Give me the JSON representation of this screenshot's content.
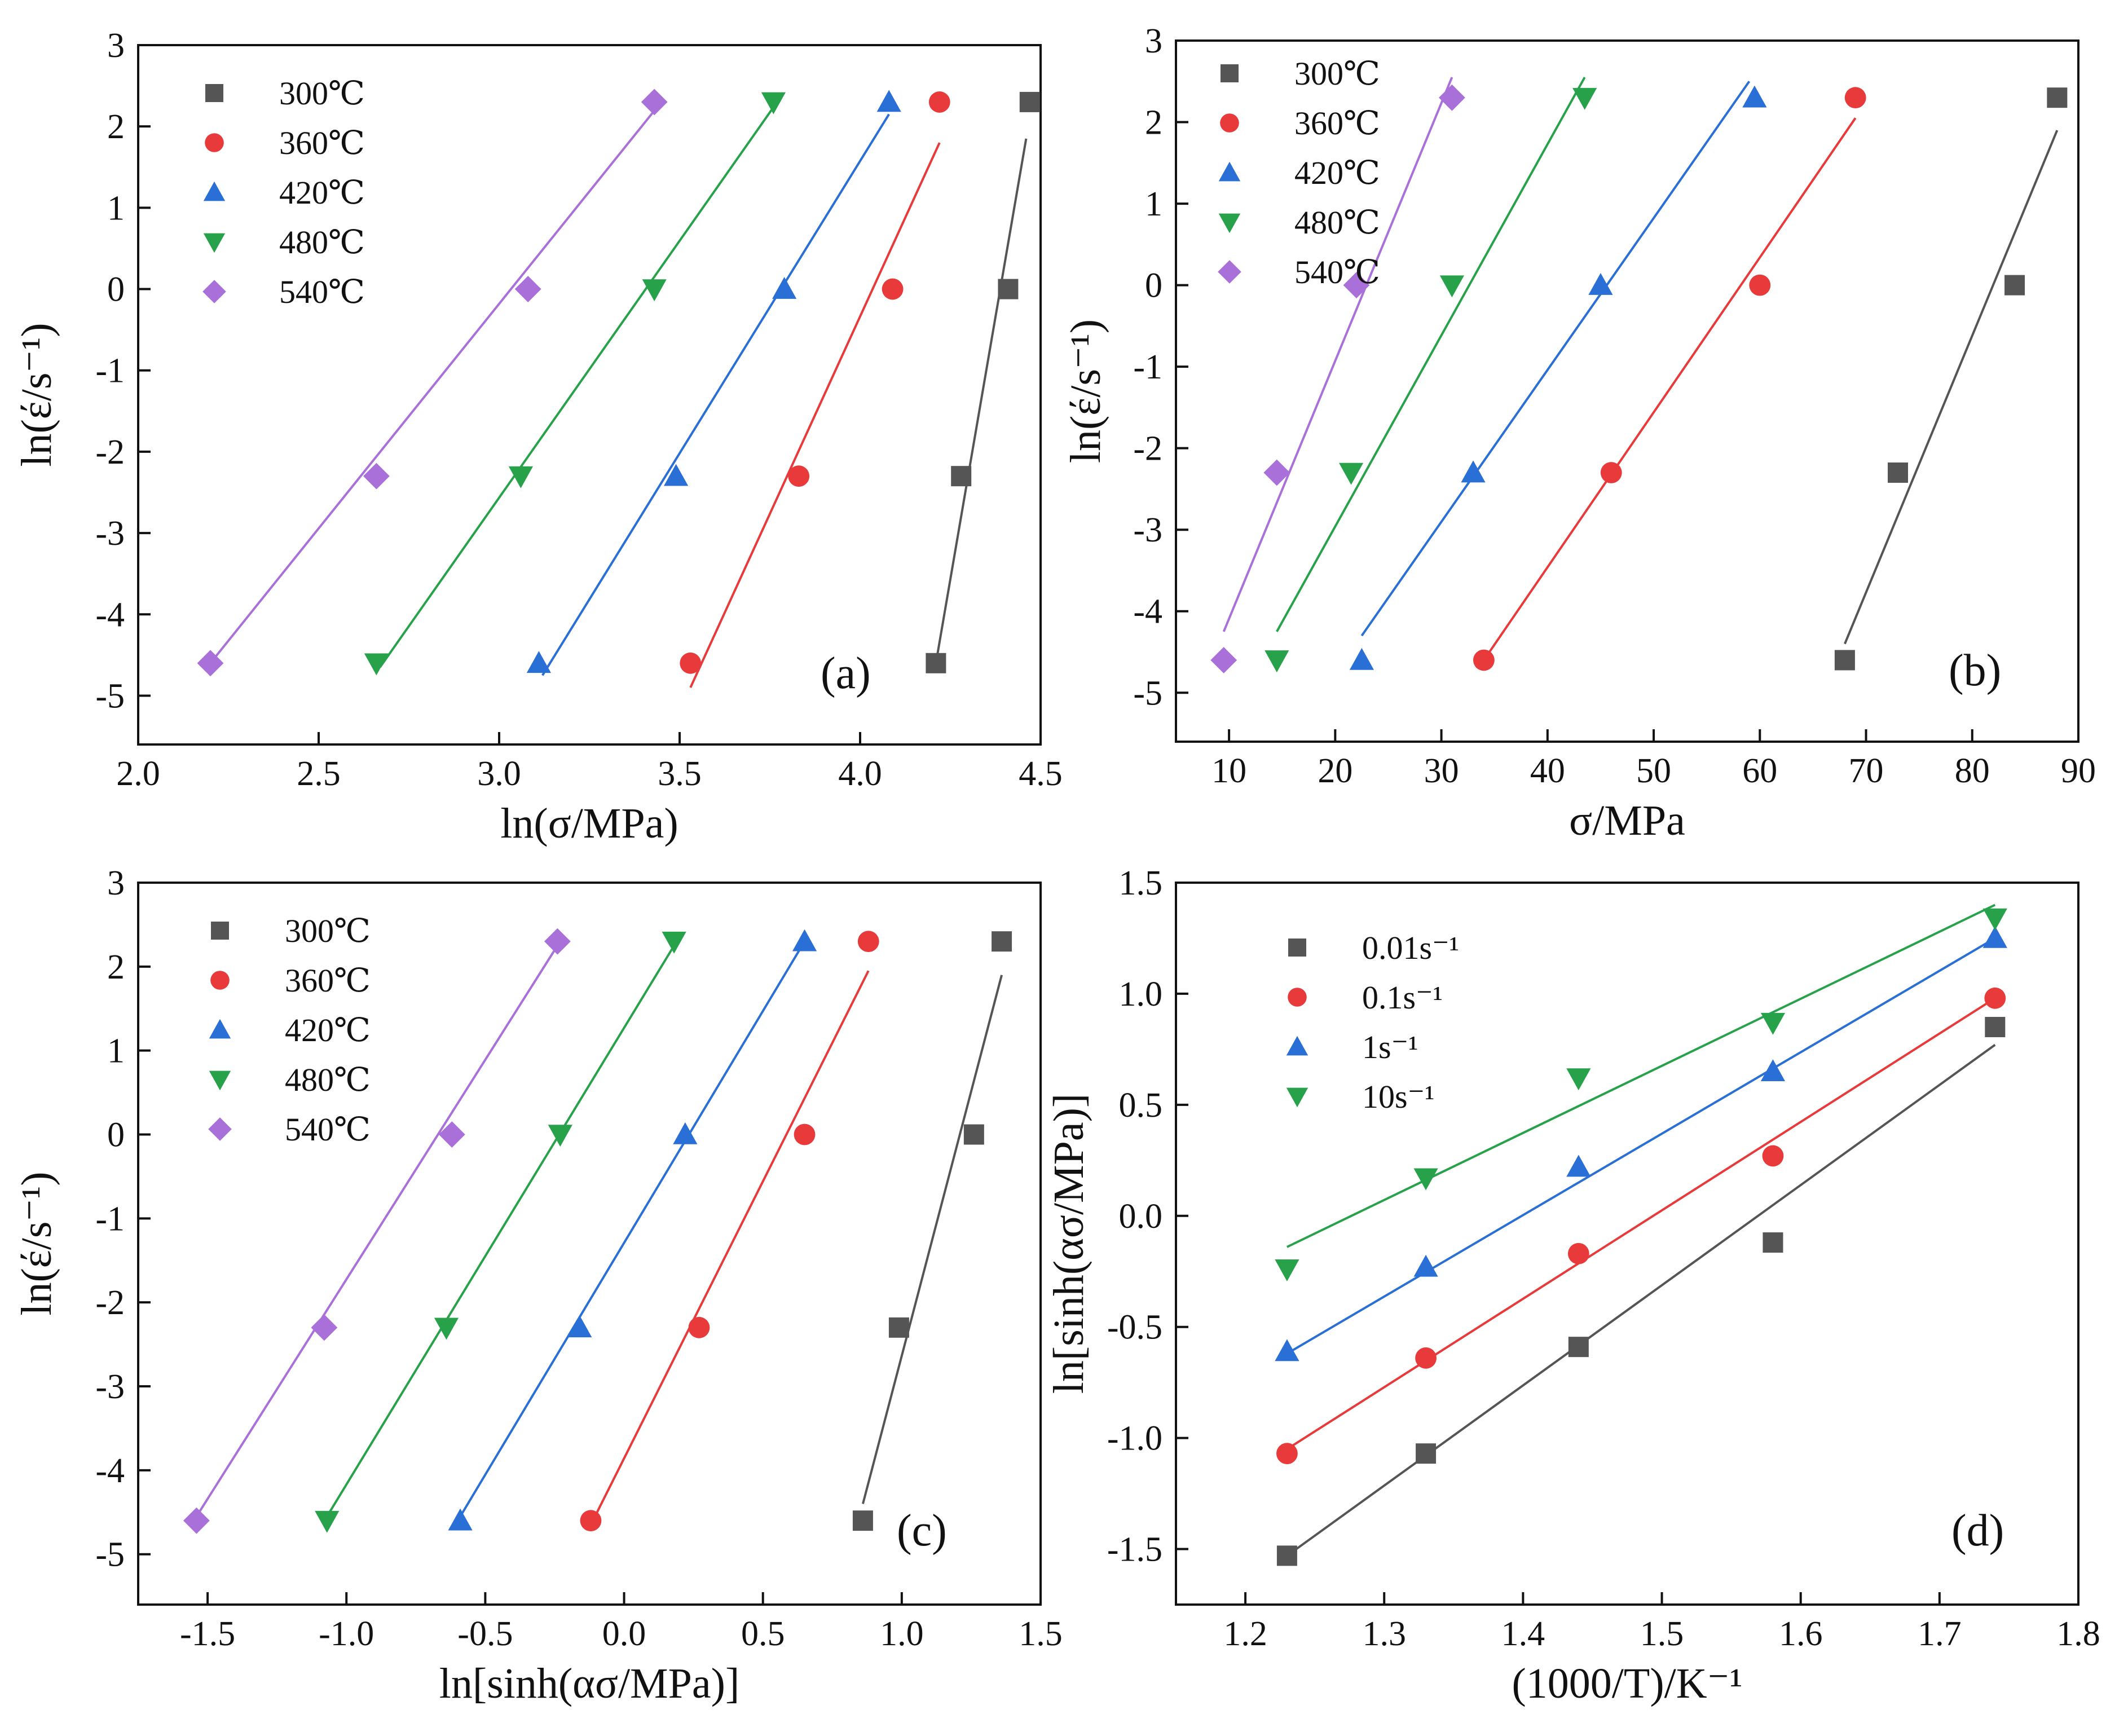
{
  "figure": {
    "colors": {
      "300": "#555555",
      "360": "#e83a3a",
      "420": "#2a6fd6",
      "480": "#27a24a",
      "540": "#a870d8",
      "0.01": "#555555",
      "0.1": "#e83a3a",
      "1": "#2a6fd6",
      "10": "#27a24a"
    }
  },
  "chart_data": [
    {
      "id": "a",
      "type": "scatter",
      "panel_label": "(a)",
      "xlabel": "ln(σ/MPa)",
      "ylabel": "ln(έ/s⁻¹)",
      "xlim": [
        2.0,
        4.5
      ],
      "ylim": [
        -5.6,
        3.0
      ],
      "xticks": [
        2.0,
        2.5,
        3.0,
        3.5,
        4.0,
        4.5
      ],
      "xtick_labels": [
        "2.0",
        "2.5",
        "3.0",
        "3.5",
        "4.0",
        "4.5"
      ],
      "yticks": [
        -5,
        -4,
        -3,
        -2,
        -1,
        0,
        1,
        2,
        3
      ],
      "ytick_labels": [
        "-5",
        "-4",
        "-3",
        "-2",
        "-1",
        "0",
        "1",
        "2",
        "3"
      ],
      "legend_position": "top-left",
      "series": [
        {
          "name": "300℃",
          "key": "300",
          "marker": "square",
          "x": [
            4.21,
            4.28,
            4.41,
            4.47
          ],
          "y": [
            -4.6,
            -2.3,
            0.0,
            2.3
          ],
          "fit": {
            "x": [
              4.21,
              4.46
            ],
            "y": [
              -4.6,
              1.85
            ]
          }
        },
        {
          "name": "360℃",
          "key": "360",
          "marker": "circle",
          "x": [
            3.53,
            3.83,
            4.09,
            4.22
          ],
          "y": [
            -4.6,
            -2.3,
            0.0,
            2.3
          ],
          "fit": {
            "x": [
              3.53,
              4.22
            ],
            "y": [
              -4.9,
              1.8
            ]
          }
        },
        {
          "name": "420℃",
          "key": "420",
          "marker": "triangle-up",
          "x": [
            3.11,
            3.49,
            3.79,
            4.08
          ],
          "y": [
            -4.6,
            -2.3,
            0.0,
            2.3
          ],
          "fit": {
            "x": [
              3.12,
              4.08
            ],
            "y": [
              -4.75,
              2.15
            ]
          }
        },
        {
          "name": "480℃",
          "key": "480",
          "marker": "triangle-down",
          "x": [
            2.66,
            3.06,
            3.43,
            3.76
          ],
          "y": [
            -4.6,
            -2.3,
            0.0,
            2.3
          ],
          "fit": {
            "x": [
              2.67,
              3.77
            ],
            "y": [
              -4.65,
              2.3
            ]
          }
        },
        {
          "name": "540℃",
          "key": "540",
          "marker": "diamond",
          "x": [
            2.2,
            2.66,
            3.08,
            3.43
          ],
          "y": [
            -4.6,
            -2.3,
            0.0,
            2.3
          ],
          "fit": {
            "x": [
              2.2,
              3.44
            ],
            "y": [
              -4.6,
              2.25
            ]
          }
        }
      ]
    },
    {
      "id": "b",
      "type": "scatter",
      "panel_label": "(b)",
      "xlabel": "σ/MPa",
      "ylabel": "ln(έ/s⁻¹)",
      "xlim": [
        5,
        90
      ],
      "ylim": [
        -5.6,
        3.0
      ],
      "xticks": [
        10,
        20,
        30,
        40,
        50,
        60,
        70,
        80,
        90
      ],
      "xtick_labels": [
        "10",
        "20",
        "30",
        "40",
        "50",
        "60",
        "70",
        "80",
        "90"
      ],
      "yticks": [
        -5,
        -4,
        -3,
        -2,
        -1,
        0,
        1,
        2,
        3
      ],
      "ytick_labels": [
        "-5",
        "-4",
        "-3",
        "-2",
        "-1",
        "0",
        "1",
        "2",
        "3"
      ],
      "legend_position": "top-left",
      "series": [
        {
          "name": "300℃",
          "key": "300",
          "marker": "square",
          "x": [
            68,
            73,
            84,
            88
          ],
          "y": [
            -4.6,
            -2.3,
            0.0,
            2.3
          ],
          "fit": {
            "x": [
              68,
              88
            ],
            "y": [
              -4.4,
              1.9
            ]
          }
        },
        {
          "name": "360℃",
          "key": "360",
          "marker": "circle",
          "x": [
            34,
            46,
            60,
            69
          ],
          "y": [
            -4.6,
            -2.3,
            0.0,
            2.3
          ],
          "fit": {
            "x": [
              34,
              69
            ],
            "y": [
              -4.6,
              2.05
            ]
          }
        },
        {
          "name": "420℃",
          "key": "420",
          "marker": "triangle-up",
          "x": [
            22.5,
            33,
            45,
            59.5
          ],
          "y": [
            -4.6,
            -2.3,
            0.0,
            2.3
          ],
          "fit": {
            "x": [
              22.5,
              59
            ],
            "y": [
              -4.3,
              2.5
            ]
          }
        },
        {
          "name": "480℃",
          "key": "480",
          "marker": "triangle-down",
          "x": [
            14.5,
            21.5,
            31,
            43.5
          ],
          "y": [
            -4.6,
            -2.3,
            0.0,
            2.3
          ],
          "fit": {
            "x": [
              14.5,
              43.5
            ],
            "y": [
              -4.25,
              2.55
            ]
          }
        },
        {
          "name": "540℃",
          "key": "540",
          "marker": "diamond",
          "x": [
            9.5,
            14.5,
            22,
            31
          ],
          "y": [
            -4.6,
            -2.3,
            0.0,
            2.3
          ],
          "fit": {
            "x": [
              9.5,
              31
            ],
            "y": [
              -4.25,
              2.55
            ]
          }
        }
      ]
    },
    {
      "id": "c",
      "type": "scatter",
      "panel_label": "(c)",
      "xlabel": "ln[sinh(ασ/MPa)]",
      "ylabel": "ln(έ/s⁻¹)",
      "xlim": [
        -1.75,
        1.5
      ],
      "ylim": [
        -5.6,
        3.0
      ],
      "xticks": [
        -1.5,
        -1.0,
        -0.5,
        0.0,
        0.5,
        1.0,
        1.5
      ],
      "xtick_labels": [
        "-1.5",
        "-1.0",
        "-0.5",
        "0.0",
        "0.5",
        "1.0",
        "1.5"
      ],
      "yticks": [
        -5,
        -4,
        -3,
        -2,
        -1,
        0,
        1,
        2,
        3
      ],
      "ytick_labels": [
        "-5",
        "-4",
        "-3",
        "-2",
        "-1",
        "0",
        "1",
        "2",
        "3"
      ],
      "legend_position": "top-left",
      "series": [
        {
          "name": "300℃",
          "key": "300",
          "marker": "square",
          "x": [
            0.86,
            0.99,
            1.26,
            1.36
          ],
          "y": [
            -4.6,
            -2.3,
            0.0,
            2.3
          ],
          "fit": {
            "x": [
              0.86,
              1.36
            ],
            "y": [
              -4.4,
              1.9
            ]
          }
        },
        {
          "name": "360℃",
          "key": "360",
          "marker": "circle",
          "x": [
            -0.12,
            0.27,
            0.65,
            0.88
          ],
          "y": [
            -4.6,
            -2.3,
            0.0,
            2.3
          ],
          "fit": {
            "x": [
              -0.12,
              0.88
            ],
            "y": [
              -4.65,
              1.95
            ]
          }
        },
        {
          "name": "420℃",
          "key": "420",
          "marker": "triangle-up",
          "x": [
            -0.59,
            -0.16,
            0.22,
            0.65
          ],
          "y": [
            -4.6,
            -2.3,
            0.0,
            2.3
          ],
          "fit": {
            "x": [
              -0.59,
              0.65
            ],
            "y": [
              -4.55,
              2.3
            ]
          }
        },
        {
          "name": "480℃",
          "key": "480",
          "marker": "triangle-down",
          "x": [
            -1.07,
            -0.64,
            -0.23,
            0.18
          ],
          "y": [
            -4.6,
            -2.3,
            0.0,
            2.3
          ],
          "fit": {
            "x": [
              -1.07,
              0.18
            ],
            "y": [
              -4.55,
              2.25
            ]
          }
        },
        {
          "name": "540℃",
          "key": "540",
          "marker": "diamond",
          "x": [
            -1.54,
            -1.08,
            -0.62,
            -0.24
          ],
          "y": [
            -4.6,
            -2.3,
            0.0,
            2.3
          ],
          "fit": {
            "x": [
              -1.54,
              -0.24
            ],
            "y": [
              -4.55,
              2.25
            ]
          }
        }
      ]
    },
    {
      "id": "d",
      "type": "scatter",
      "panel_label": "(d)",
      "xlabel": "(1000/T)/K⁻¹",
      "ylabel": "ln[sinh(ασ/MPa)]",
      "xlim": [
        1.15,
        1.8
      ],
      "ylim": [
        -1.75,
        1.5
      ],
      "xticks": [
        1.2,
        1.3,
        1.4,
        1.5,
        1.6,
        1.7,
        1.8
      ],
      "xtick_labels": [
        "1.2",
        "1.3",
        "1.4",
        "1.5",
        "1.6",
        "1.7",
        "1.8"
      ],
      "yticks": [
        -1.5,
        -1.0,
        -0.5,
        0.0,
        0.5,
        1.0,
        1.5
      ],
      "ytick_labels": [
        "-1.5",
        "-1.0",
        "-0.5",
        "0.0",
        "0.5",
        "1.0",
        "1.5"
      ],
      "legend_position": "top-left",
      "series": [
        {
          "name": "0.01s⁻¹",
          "key": "0.01",
          "marker": "square",
          "x": [
            1.23,
            1.33,
            1.44,
            1.58,
            1.74
          ],
          "y": [
            -1.53,
            -1.07,
            -0.59,
            -0.12,
            0.85
          ],
          "fit": {
            "x": [
              1.23,
              1.74
            ],
            "y": [
              -1.53,
              0.77
            ]
          }
        },
        {
          "name": "0.1s⁻¹",
          "key": "0.1",
          "marker": "circle",
          "x": [
            1.23,
            1.33,
            1.44,
            1.58,
            1.74
          ],
          "y": [
            -1.07,
            -0.64,
            -0.17,
            0.27,
            0.98
          ],
          "fit": {
            "x": [
              1.23,
              1.74
            ],
            "y": [
              -1.05,
              0.98
            ]
          }
        },
        {
          "name": "1s⁻¹",
          "key": "1",
          "marker": "triangle-up",
          "x": [
            1.23,
            1.33,
            1.44,
            1.58,
            1.74
          ],
          "y": [
            -0.61,
            -0.23,
            0.22,
            0.65,
            1.25
          ],
          "fit": {
            "x": [
              1.23,
              1.74
            ],
            "y": [
              -0.62,
              1.25
            ]
          }
        },
        {
          "name": "10s⁻¹",
          "key": "10",
          "marker": "triangle-down",
          "x": [
            1.23,
            1.33,
            1.44,
            1.58,
            1.74
          ],
          "y": [
            -0.24,
            0.17,
            0.62,
            0.87,
            1.34
          ],
          "fit": {
            "x": [
              1.23,
              1.74
            ],
            "y": [
              -0.14,
              1.4
            ]
          }
        }
      ]
    }
  ]
}
